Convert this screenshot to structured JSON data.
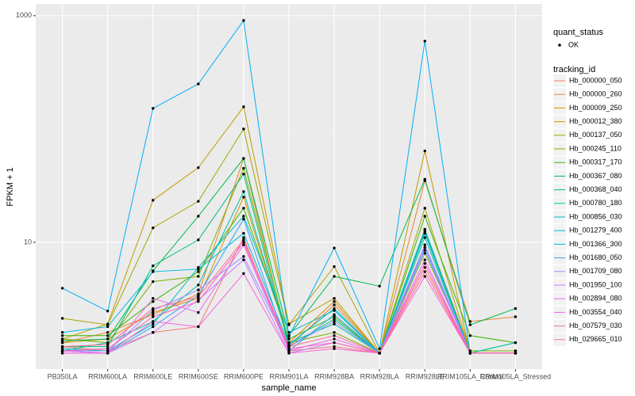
{
  "chart_data": {
    "type": "line",
    "x_label": "sample_name",
    "y_label": "FPKM + 1",
    "log": true,
    "grid": true,
    "legend": "right",
    "point_legend_title": "quant_status",
    "point_legend_labels": [
      "OK"
    ],
    "legend_title": "tracking_id",
    "ylim": [
      0.76,
      1270
    ],
    "yticks": [
      10,
      1000
    ],
    "categories": [
      "PB350LA",
      "RRIM600LA",
      "RRIM600LE",
      "RRIM600SE",
      "RRIM600PE",
      "RRIM901LA",
      "RRIM928BA",
      "RRIM928LA",
      "RRIM928LE",
      "RRIM105LA_Control",
      "RRIM105LA_Stressed"
    ],
    "series": [
      {
        "name": "Hb_000000_050",
        "color": "#F8766D",
        "values": [
          1.2,
          1.1,
          1.6,
          1.8,
          11,
          1.1,
          1.2,
          1.05,
          6,
          1.05,
          1.05
        ]
      },
      {
        "name": "Hb_000000_260",
        "color": "#EA8331",
        "values": [
          1.3,
          1.6,
          2.3,
          3.5,
          55,
          1.2,
          2.8,
          1.05,
          35,
          2.0,
          2.2
        ]
      },
      {
        "name": "Hb_000009_250",
        "color": "#D89000",
        "values": [
          1.3,
          1.4,
          2.4,
          3.2,
          25,
          1.3,
          3.0,
          1.05,
          13,
          1.1,
          1.1
        ]
      },
      {
        "name": "Hb_000012_380",
        "color": "#C09B00",
        "values": [
          1.4,
          1.9,
          23.5,
          45.6,
          157,
          1.9,
          3.2,
          1.05,
          64,
          1.05,
          1.05
        ]
      },
      {
        "name": "Hb_000137_050",
        "color": "#A3A500",
        "values": [
          2.13,
          1.87,
          13.4,
          23,
          100,
          1.87,
          6.1,
          1.05,
          20,
          1.1,
          1.1
        ]
      },
      {
        "name": "Hb_000245_110",
        "color": "#7CAE00",
        "values": [
          1.4,
          1.3,
          4.5,
          5,
          45,
          1.3,
          1.6,
          1.05,
          8,
          1.1,
          1.1
        ]
      },
      {
        "name": "Hb_000317_170",
        "color": "#39B600",
        "values": [
          1.5,
          1.5,
          3.0,
          5.5,
          20,
          1.4,
          2.2,
          1.05,
          17,
          1.5,
          1.3
        ]
      },
      {
        "name": "Hb_000367_080",
        "color": "#00BB4E",
        "values": [
          1.35,
          1.4,
          5.6,
          17,
          55,
          1.5,
          5,
          4.1,
          36,
          1.87,
          2.6
        ]
      },
      {
        "name": "Hb_000368_040",
        "color": "#00BF7D",
        "values": [
          1.2,
          1.2,
          6.2,
          10.5,
          40,
          1.2,
          2.1,
          1.05,
          12,
          1.05,
          1.3
        ]
      },
      {
        "name": "Hb_000780_180",
        "color": "#00C1A3",
        "values": [
          1.1,
          1.3,
          2.0,
          4.2,
          28,
          1.3,
          1.9,
          1.05,
          11,
          1.05,
          1.3
        ]
      },
      {
        "name": "Hb_000856_030",
        "color": "#00BFC4",
        "values": [
          1.15,
          1.1,
          1.9,
          6.0,
          17,
          1.6,
          2.5,
          1.05,
          13,
          1.05,
          1.05
        ]
      },
      {
        "name": "Hb_001279_400",
        "color": "#00BAE0",
        "values": [
          1.6,
          1.8,
          5.5,
          5.8,
          12,
          1.25,
          2.6,
          1.05,
          12.5,
          1.05,
          1.05
        ]
      },
      {
        "name": "Hb_001366_300",
        "color": "#00B0F6",
        "values": [
          3.93,
          2.47,
          152,
          250,
          908,
          1.48,
          8.9,
          1.15,
          597,
          1.05,
          1.05
        ]
      },
      {
        "name": "Hb_001680_050",
        "color": "#35A2FF",
        "values": [
          1.1,
          1.05,
          1.8,
          3.4,
          16,
          1.1,
          2.3,
          1.05,
          9,
          1.05,
          1.05
        ]
      },
      {
        "name": "Hb_001709_080",
        "color": "#9590FF",
        "values": [
          1.1,
          1.1,
          2.5,
          3.8,
          7.5,
          1.2,
          2.0,
          1.05,
          8.5,
          1.05,
          1.05
        ]
      },
      {
        "name": "Hb_001950_100",
        "color": "#C77CFF",
        "values": [
          1.05,
          1.05,
          1.6,
          3.1,
          7,
          1.05,
          1.3,
          1.05,
          9.5,
          1.05,
          1.05
        ]
      },
      {
        "name": "Hb_002894_080",
        "color": "#E76BF3",
        "values": [
          1.1,
          1.05,
          3.2,
          2.4,
          9.5,
          1.1,
          1.4,
          1.05,
          7,
          1.05,
          1.05
        ]
      },
      {
        "name": "Hb_003554_040",
        "color": "#FA62DB",
        "values": [
          1.05,
          1.05,
          2.0,
          1.8,
          5.3,
          1.05,
          1.15,
          1.05,
          5,
          1.05,
          1.05
        ]
      },
      {
        "name": "Hb_007579_030",
        "color": "#FF62BC",
        "values": [
          1.1,
          1.15,
          2.2,
          3.0,
          10,
          1.15,
          1.3,
          1.05,
          6.5,
          1.05,
          1.05
        ]
      },
      {
        "name": "Hb_029665_010",
        "color": "#FF6C91",
        "values": [
          1.2,
          1.25,
          2.6,
          3.3,
          10.5,
          1.2,
          1.5,
          1.05,
          5.5,
          1.05,
          1.05
        ]
      }
    ]
  }
}
